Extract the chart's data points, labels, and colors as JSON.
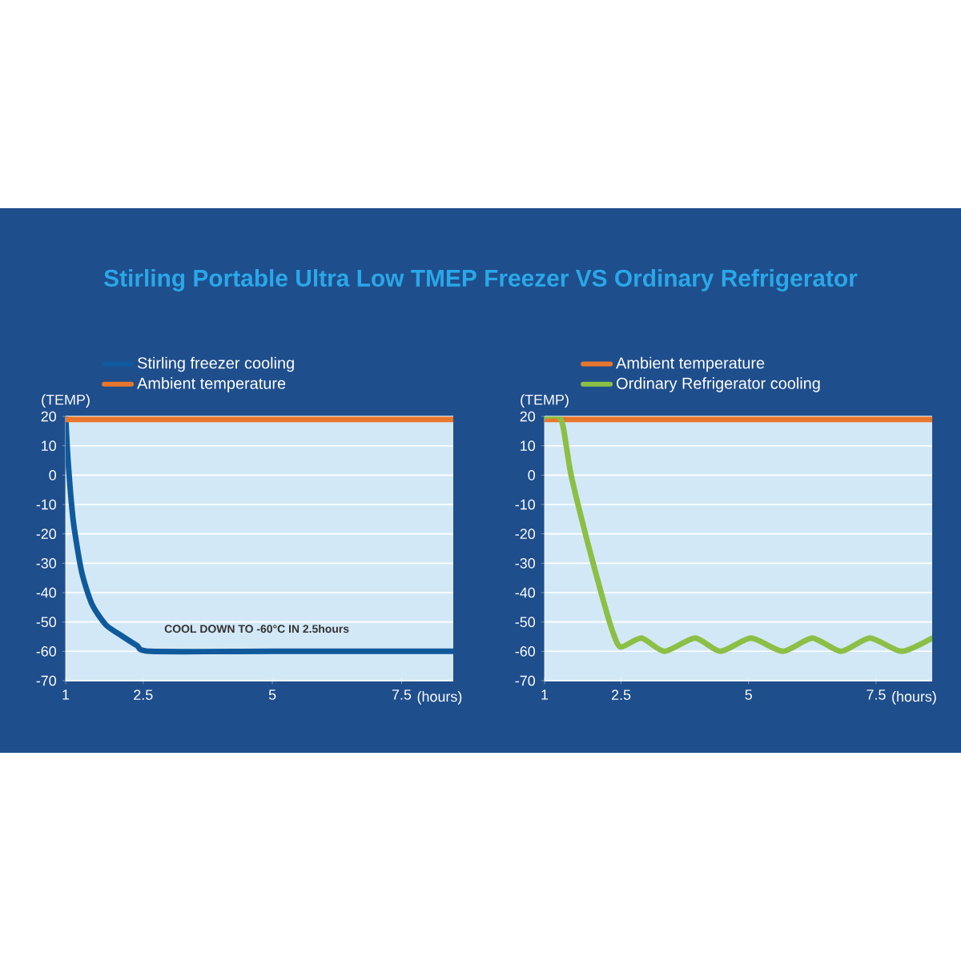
{
  "chart_data": [
    {
      "type": "line",
      "title": "Stirling Portable Ultra Low TMEP Freezer VS Ordinary Refrigerator",
      "xlabel": "(hours)",
      "ylabel": "(TEMP)",
      "xlim": [
        1,
        8.5
      ],
      "ylim": [
        -70,
        20
      ],
      "xticks": [
        1,
        2.5,
        5,
        7.5
      ],
      "yticks": [
        -70,
        -60,
        -50,
        -40,
        -30,
        -20,
        -10,
        0,
        10,
        20
      ],
      "grid": "y",
      "legend": "top",
      "marker": "none",
      "line_style": "solid",
      "annotations": [
        "COOL DOWN TO -60°C IN 2.5hours"
      ],
      "series": [
        {
          "name": "Stirling freezer cooling",
          "color": "#0f5a9c",
          "x": [
            1,
            1.05,
            1.15,
            1.31,
            1.51,
            1.78,
            2.11,
            2.38,
            2.65,
            5,
            8.5
          ],
          "values": [
            20,
            4,
            -16,
            -33,
            -44,
            -51,
            -55,
            -58,
            -60,
            -60,
            -60
          ]
        },
        {
          "name": "Ambient temperature",
          "color": "#e8762d",
          "x": [
            1,
            8.5
          ],
          "values": [
            19,
            19
          ]
        }
      ]
    },
    {
      "type": "line",
      "xlabel": "(hours)",
      "ylabel": "(TEMP)",
      "xlim": [
        1,
        8.6
      ],
      "ylim": [
        -70,
        20
      ],
      "xticks": [
        1,
        2.5,
        5,
        7.5
      ],
      "yticks": [
        -70,
        -60,
        -50,
        -40,
        -30,
        -20,
        -10,
        0,
        10,
        20
      ],
      "grid": "y",
      "legend": "top",
      "marker": "none",
      "line_style": "solid",
      "series": [
        {
          "name": "Ambient temperature",
          "color": "#e8762d",
          "x": [
            1,
            8.6
          ],
          "values": [
            19,
            19
          ]
        },
        {
          "name": "Ordinary Refrigerator cooling",
          "color": "#8cbf45",
          "x": [
            1,
            1.28,
            1.37,
            1.52,
            1.83,
            2.14,
            2.33,
            2.49,
            2.9,
            3.35,
            3.95,
            4.45,
            5.05,
            5.67,
            6.25,
            6.81,
            7.38,
            8.0,
            8.6
          ],
          "values": [
            20,
            20,
            16,
            0,
            -22,
            -42,
            -53,
            -58.5,
            -55.5,
            -60,
            -55.5,
            -60,
            -55.5,
            -60,
            -55.5,
            -60,
            -55.5,
            -60,
            -55.5
          ]
        }
      ]
    }
  ]
}
